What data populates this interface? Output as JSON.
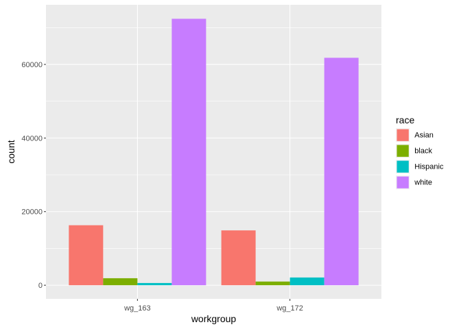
{
  "chart_data": {
    "type": "bar",
    "title": "",
    "xlabel": "workgroup",
    "ylabel": "count",
    "categories": [
      "wg_163",
      "wg_172"
    ],
    "series": [
      {
        "name": "Asian",
        "color": "#F8766D",
        "values": [
          16300,
          14900
        ]
      },
      {
        "name": "black",
        "color": "#7CAE00",
        "values": [
          1900,
          1000
        ]
      },
      {
        "name": "Hispanic",
        "color": "#00BFC4",
        "values": [
          600,
          2100
        ]
      },
      {
        "name": "white",
        "color": "#C77CFF",
        "values": [
          72400,
          61800
        ]
      }
    ],
    "ylim": [
      -3700,
      76200
    ],
    "yticks": [
      0,
      20000,
      40000,
      60000
    ],
    "ytick_labels": [
      "0",
      "20000",
      "40000",
      "60000"
    ],
    "grid": true,
    "legend": {
      "title": "race",
      "placement": "right"
    },
    "panel_background": "#EBEBEB",
    "grid_color": "#FFFFFF"
  }
}
